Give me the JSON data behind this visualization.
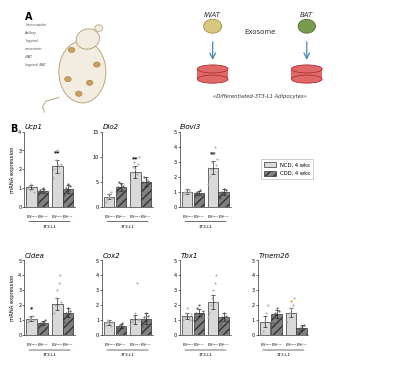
{
  "panel_B": {
    "top_row": [
      {
        "title": "Ucp1",
        "ylabel": "mRNA expression",
        "ylim": [
          0,
          4
        ],
        "yticks": [
          0,
          1,
          2,
          3,
          4
        ],
        "bars": {
          "NCD_IWAT": {
            "mean": 1.05,
            "sem": 0.12
          },
          "CDD_IWAT": {
            "mean": 0.85,
            "sem": 0.1
          },
          "NCD_BAT": {
            "mean": 2.15,
            "sem": 0.35
          },
          "CDD_BAT": {
            "mean": 0.95,
            "sem": 0.2
          }
        },
        "dots_NCD_IWAT": [
          1.0,
          1.1,
          0.9,
          1.2,
          1.0,
          0.8
        ],
        "dots_CDD_IWAT": [
          0.8,
          0.9,
          0.7,
          1.0,
          0.85,
          0.75
        ],
        "dots_NCD_BAT": [
          1.5,
          2.0,
          2.5,
          3.0,
          2.2,
          1.8,
          2.3
        ],
        "dots_CDD_BAT": [
          0.6,
          0.8,
          1.0,
          1.2,
          0.9,
          1.1
        ],
        "significance": {
          "pos": "NCD_BAT",
          "label": "**",
          "color": "black"
        }
      },
      {
        "title": "Dio2",
        "ylabel": "mRNA expression",
        "ylim": [
          0,
          15
        ],
        "yticks": [
          0,
          5,
          10,
          15
        ],
        "bars": {
          "NCD_IWAT": {
            "mean": 2.0,
            "sem": 0.5
          },
          "CDD_IWAT": {
            "mean": 4.0,
            "sem": 0.8
          },
          "NCD_BAT": {
            "mean": 7.0,
            "sem": 1.2
          },
          "CDD_BAT": {
            "mean": 5.0,
            "sem": 0.9
          }
        },
        "dots_NCD_IWAT": [
          1.0,
          1.5,
          2.5,
          2.0,
          3.0,
          1.8
        ],
        "dots_CDD_IWAT": [
          3.0,
          4.0,
          5.0,
          4.5,
          3.5,
          4.2
        ],
        "dots_NCD_BAT": [
          5.0,
          7.0,
          8.0,
          9.0,
          7.5,
          6.5,
          8.5,
          10.0
        ],
        "dots_CDD_BAT": [
          3.5,
          5.0,
          6.0,
          5.5,
          4.5,
          5.2
        ],
        "significance": {
          "pos": "NCD_BAT",
          "label": "**",
          "color": "black"
        }
      },
      {
        "title": "Elovl3",
        "ylabel": "mRNA expression",
        "ylim": [
          0,
          5
        ],
        "yticks": [
          0,
          1,
          2,
          3,
          4,
          5
        ],
        "bars": {
          "NCD_IWAT": {
            "mean": 1.0,
            "sem": 0.15
          },
          "CDD_IWAT": {
            "mean": 0.9,
            "sem": 0.12
          },
          "NCD_BAT": {
            "mean": 2.6,
            "sem": 0.45
          },
          "CDD_BAT": {
            "mean": 1.0,
            "sem": 0.2
          }
        },
        "dots_NCD_IWAT": [
          0.8,
          1.0,
          1.2,
          0.9,
          1.1,
          1.0
        ],
        "dots_CDD_IWAT": [
          0.7,
          0.9,
          1.0,
          0.8,
          1.1,
          0.85
        ],
        "dots_NCD_BAT": [
          1.5,
          2.0,
          2.5,
          3.0,
          3.5,
          4.0,
          2.8,
          3.2
        ],
        "dots_CDD_BAT": [
          0.6,
          0.8,
          1.0,
          1.2,
          0.9,
          1.1
        ],
        "significance": {
          "pos": "NCD_BAT",
          "label": "**",
          "color": "black"
        }
      }
    ],
    "bottom_row": [
      {
        "title": "Cidea",
        "ylabel": "mRNA expression",
        "ylim": [
          0,
          5
        ],
        "yticks": [
          0,
          1,
          2,
          3,
          4,
          5
        ],
        "bars": {
          "NCD_IWAT": {
            "mean": 1.1,
            "sem": 0.18
          },
          "CDD_IWAT": {
            "mean": 0.8,
            "sem": 0.15
          },
          "NCD_BAT": {
            "mean": 2.1,
            "sem": 0.4
          },
          "CDD_BAT": {
            "mean": 1.5,
            "sem": 0.3
          }
        },
        "dots_NCD_IWAT": [
          0.9,
          1.0,
          1.2,
          1.1,
          1.3,
          1.0
        ],
        "dots_CDD_IWAT": [
          0.6,
          0.8,
          0.7,
          0.9,
          0.8,
          1.0
        ],
        "dots_NCD_BAT": [
          1.2,
          1.5,
          2.0,
          2.5,
          3.0,
          3.5,
          4.0,
          2.2
        ],
        "dots_CDD_BAT": [
          0.9,
          1.2,
          1.5,
          1.8,
          1.4,
          1.6
        ],
        "significance": {
          "pos": "NCD_IWAT",
          "label": "*",
          "color": "black"
        }
      },
      {
        "title": "Cox2",
        "ylabel": "mRNA expression",
        "ylim": [
          0,
          5
        ],
        "yticks": [
          0,
          1,
          2,
          3,
          4,
          5
        ],
        "bars": {
          "NCD_IWAT": {
            "mean": 0.85,
            "sem": 0.15
          },
          "CDD_IWAT": {
            "mean": 0.6,
            "sem": 0.12
          },
          "NCD_BAT": {
            "mean": 1.05,
            "sem": 0.3
          },
          "CDD_BAT": {
            "mean": 1.1,
            "sem": 0.35
          }
        },
        "dots_NCD_IWAT": [
          0.7,
          0.9,
          1.0,
          0.8,
          0.6,
          0.85
        ],
        "dots_CDD_IWAT": [
          0.4,
          0.5,
          0.6,
          0.7,
          0.8,
          0.5
        ],
        "dots_NCD_BAT": [
          0.7,
          0.9,
          1.0,
          1.2,
          1.5,
          3.5,
          1.0,
          1.1
        ],
        "dots_CDD_BAT": [
          0.6,
          0.9,
          1.2,
          1.5,
          1.0,
          1.3
        ],
        "significance": null
      },
      {
        "title": "Tbx1",
        "ylabel": "mRNA expression",
        "ylim": [
          0,
          5
        ],
        "yticks": [
          0,
          1,
          2,
          3,
          4,
          5
        ],
        "bars": {
          "NCD_IWAT": {
            "mean": 1.3,
            "sem": 0.2
          },
          "CDD_IWAT": {
            "mean": 1.5,
            "sem": 0.25
          },
          "NCD_BAT": {
            "mean": 2.2,
            "sem": 0.45
          },
          "CDD_BAT": {
            "mean": 1.2,
            "sem": 0.25
          }
        },
        "dots_NCD_IWAT": [
          0.8,
          1.0,
          1.2,
          1.5,
          1.8,
          1.2,
          1.0,
          1.4
        ],
        "dots_CDD_IWAT": [
          1.0,
          1.2,
          1.5,
          1.8,
          2.0,
          1.4,
          1.3,
          1.6
        ],
        "dots_NCD_BAT": [
          1.2,
          1.5,
          2.0,
          2.5,
          3.0,
          3.5,
          4.0,
          2.2
        ],
        "dots_CDD_BAT": [
          0.7,
          0.9,
          1.2,
          1.5,
          1.0,
          1.3
        ],
        "significance": null
      },
      {
        "title": "Tmem26",
        "ylabel": "mRNA expression",
        "ylim": [
          0,
          5
        ],
        "yticks": [
          0,
          1,
          2,
          3,
          4,
          5
        ],
        "bars": {
          "NCD_IWAT": {
            "mean": 0.9,
            "sem": 0.35
          },
          "CDD_IWAT": {
            "mean": 1.4,
            "sem": 0.25
          },
          "NCD_BAT": {
            "mean": 1.5,
            "sem": 0.3
          },
          "CDD_BAT": {
            "mean": 0.5,
            "sem": 0.15
          }
        },
        "dots_NCD_IWAT": [
          0.1,
          0.3,
          0.8,
          1.0,
          1.5,
          2.0
        ],
        "dots_CDD_IWAT": [
          0.8,
          1.2,
          1.5,
          1.8,
          1.0,
          1.6
        ],
        "dots_NCD_BAT": [
          0.9,
          1.2,
          1.5,
          1.8,
          2.0,
          2.5
        ],
        "dots_CDD_BAT": [
          0.2,
          0.4,
          0.5,
          0.6,
          0.4,
          0.7
        ],
        "significance": {
          "pos": "NCD_BAT",
          "label": "*",
          "color": "#E8A000"
        }
      }
    ]
  },
  "legend": {
    "NCD": "NCD, 4 wks",
    "CDD": "CDD, 4 wks"
  },
  "colors": {
    "NCD_bar": "#d9d9d9",
    "CDD_bar": "#808080",
    "NCD_dot": "#999999",
    "CDD_dot": "#444444",
    "bar_edge": "#333333"
  }
}
